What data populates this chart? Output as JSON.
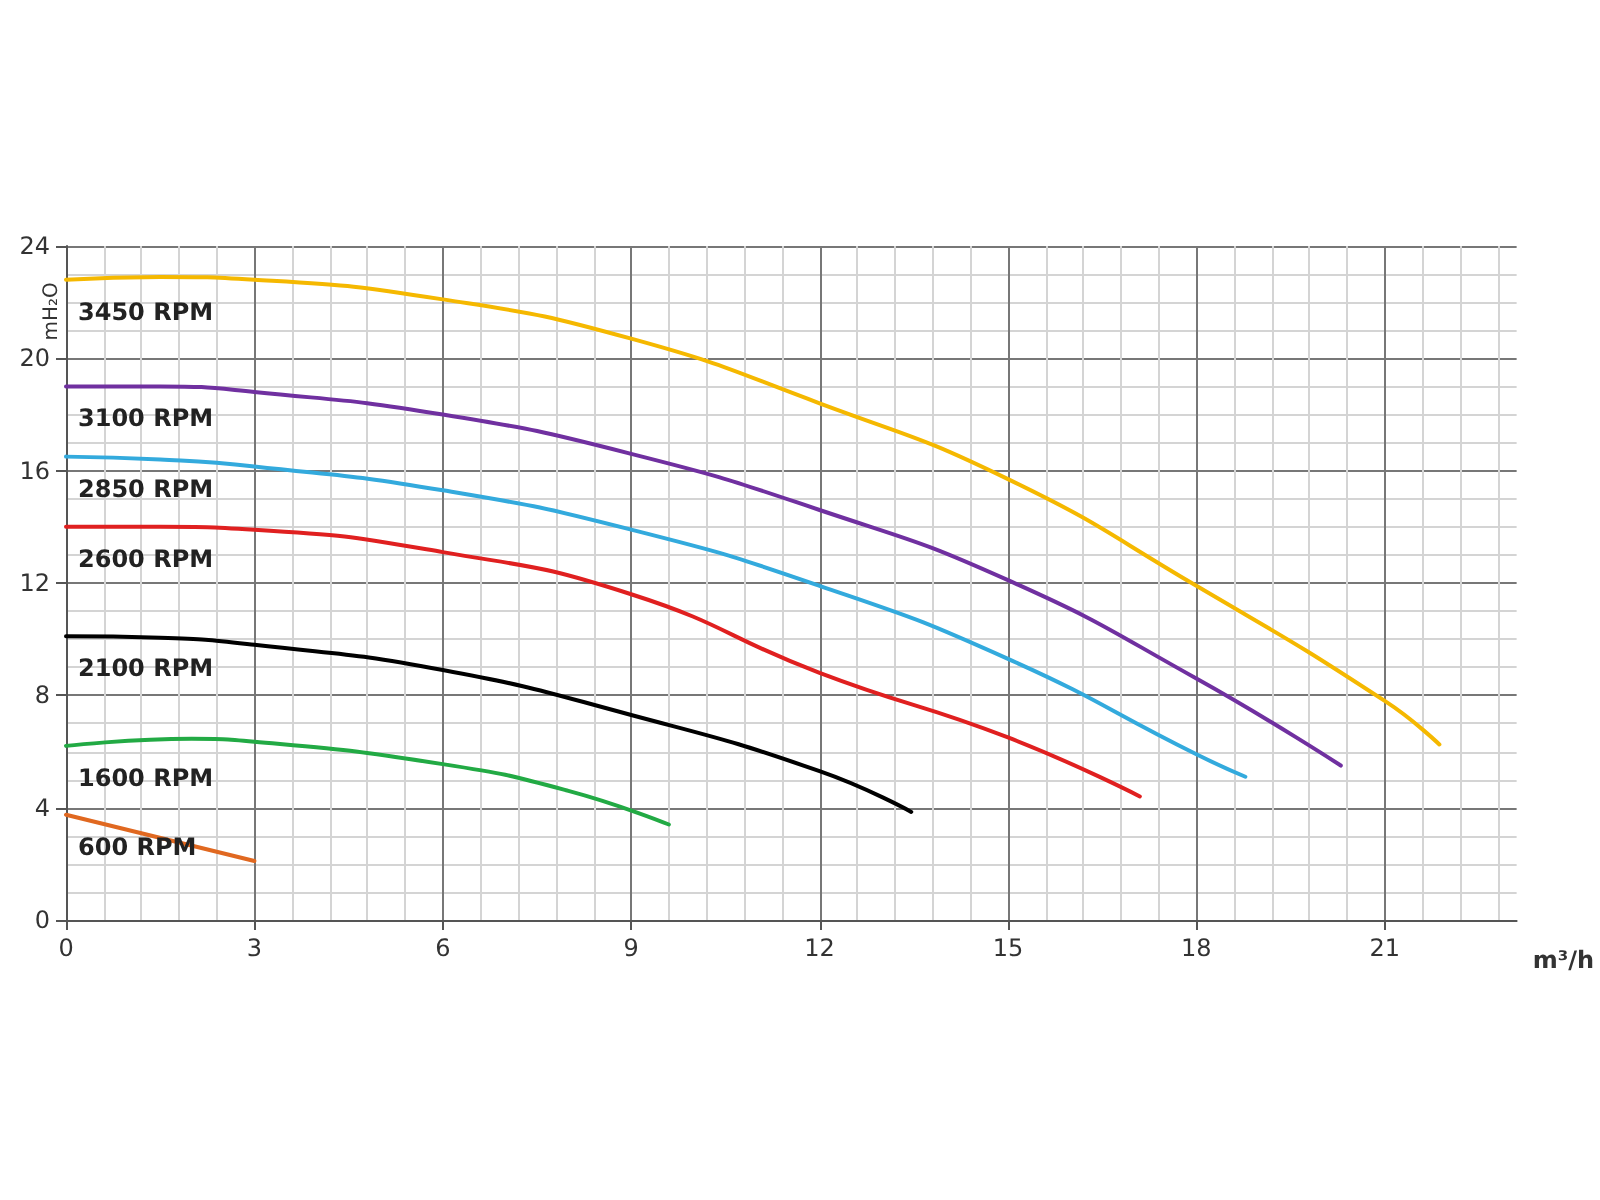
{
  "chart_data": {
    "type": "line",
    "xlabel": "m³/h",
    "ylabel": "mH₂O",
    "xlim": [
      0,
      23.1
    ],
    "ylim": [
      0,
      24
    ],
    "xticks": [
      0,
      3,
      6,
      9,
      12,
      15,
      18,
      21
    ],
    "yticks": [
      0,
      4,
      8,
      12,
      16,
      20,
      24
    ],
    "grid": true,
    "legend": false,
    "marker": "none",
    "line_style": "solid",
    "series": [
      {
        "name": "3450 RPM",
        "color": "#f5b800",
        "x": [
          0,
          1.5,
          3,
          6,
          9,
          12,
          15,
          18,
          21,
          21.87
        ],
        "values": [
          22.8,
          22.9,
          22.8,
          22.1,
          20.7,
          18.4,
          15.7,
          11.9,
          7.8,
          6.25
        ]
      },
      {
        "name": "3100 RPM",
        "color": "#7030a0",
        "x": [
          0,
          1.5,
          3,
          6,
          9,
          12,
          15,
          18,
          20.3
        ],
        "values": [
          19.0,
          19.0,
          18.8,
          18.0,
          16.6,
          14.6,
          12.1,
          8.6,
          5.5
        ]
      },
      {
        "name": "2850 RPM",
        "color": "#33aadd",
        "x": [
          0,
          1.5,
          3,
          6,
          9,
          12,
          15,
          18,
          18.78
        ],
        "values": [
          16.5,
          16.4,
          16.15,
          15.3,
          13.9,
          11.9,
          9.3,
          5.9,
          5.1
        ]
      },
      {
        "name": "2600 RPM",
        "color": "#e02020",
        "x": [
          0,
          1.5,
          3,
          6,
          9,
          12,
          15,
          17.1
        ],
        "values": [
          14.0,
          14.0,
          13.9,
          13.1,
          11.6,
          8.8,
          6.5,
          4.4
        ]
      },
      {
        "name": "2100 RPM",
        "color": "#000000",
        "x": [
          0,
          1.5,
          3,
          6,
          9,
          12,
          13.46
        ],
        "values": [
          10.1,
          10.05,
          9.8,
          8.9,
          7.3,
          5.3,
          3.85
        ]
      },
      {
        "name": "1600 RPM",
        "color": "#22aa44",
        "x": [
          0,
          2,
          3,
          6,
          8,
          9.6
        ],
        "values": [
          6.2,
          6.45,
          6.35,
          5.55,
          4.6,
          3.4
        ]
      },
      {
        "name": "600 RPM",
        "color": "#e06820",
        "x": [
          0,
          3
        ],
        "values": [
          3.75,
          2.1
        ]
      }
    ]
  }
}
